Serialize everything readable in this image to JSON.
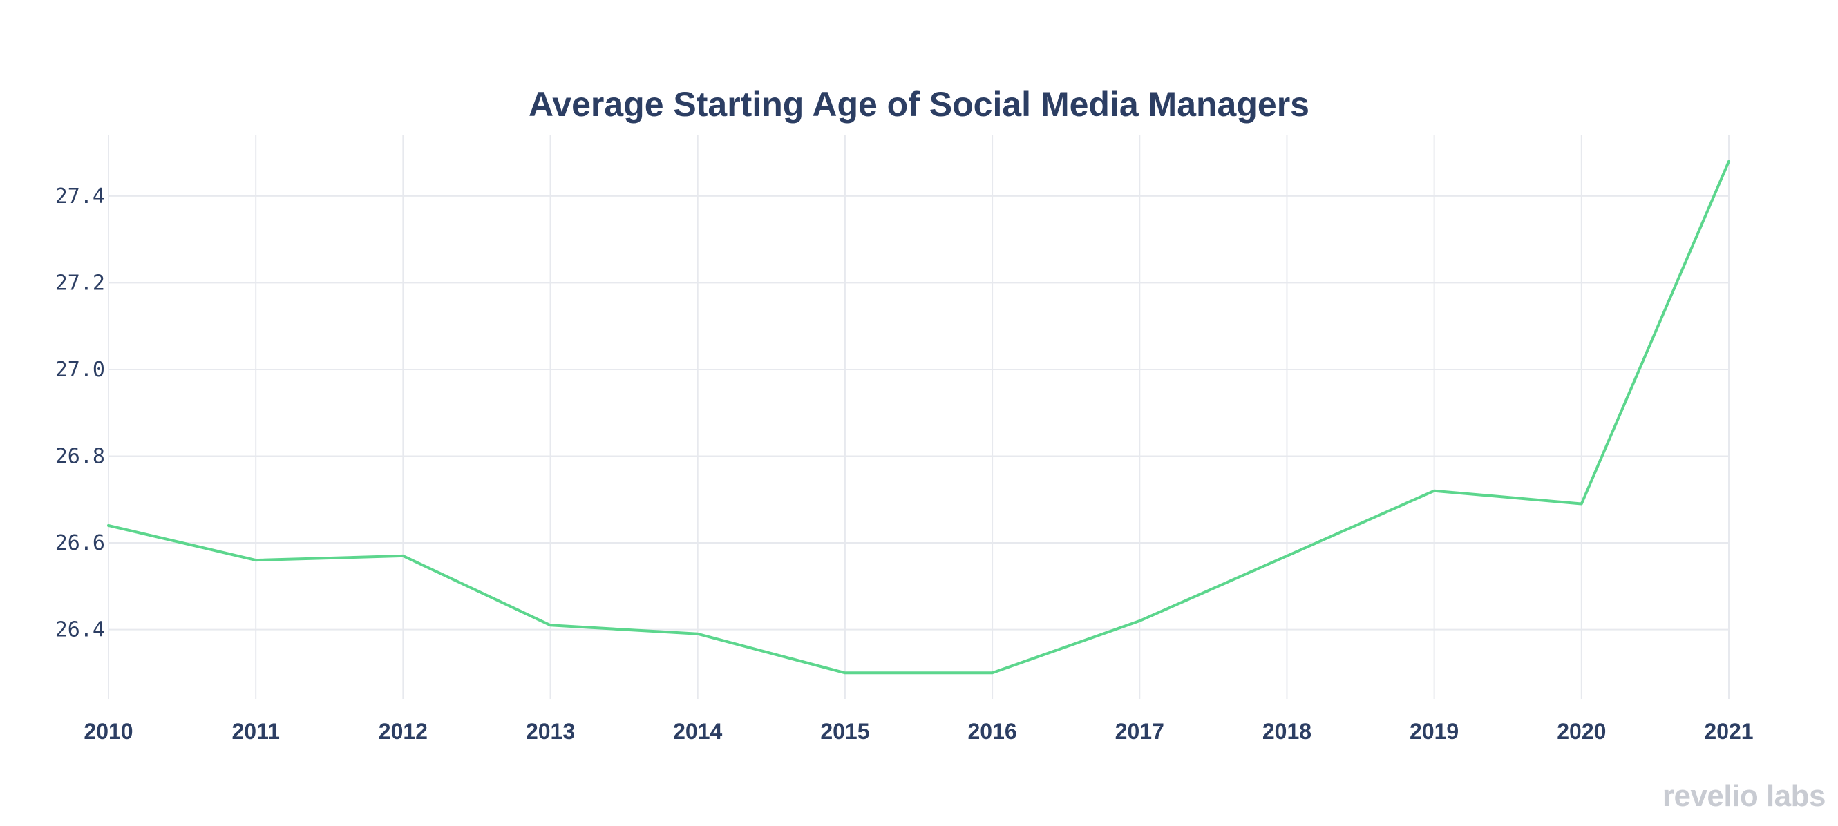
{
  "chart_data": {
    "type": "line",
    "title": "Average Starting Age of Social Media Managers",
    "xlabel": "",
    "ylabel": "",
    "x": [
      "2010",
      "2011",
      "2012",
      "2013",
      "2014",
      "2015",
      "2016",
      "2017",
      "2018",
      "2019",
      "2020",
      "2021"
    ],
    "series": [
      {
        "name": "Average Starting Age",
        "values": [
          26.64,
          26.56,
          26.57,
          26.41,
          26.39,
          26.3,
          26.3,
          26.42,
          26.57,
          26.72,
          26.69,
          27.48
        ],
        "color": "#5cd68d"
      }
    ],
    "yticks": [
      "26.4",
      "26.6",
      "26.8",
      "27.0",
      "27.2",
      "27.4"
    ],
    "ytick_values": [
      26.4,
      26.6,
      26.8,
      27.0,
      27.2,
      27.4
    ],
    "ylim": [
      26.24,
      27.54
    ],
    "grid": true,
    "legend": "none"
  },
  "watermark": "revelio labs",
  "colors": {
    "text": "#2c3e63",
    "grid": "#e7e9ee",
    "watermark": "#c8cbd2"
  }
}
